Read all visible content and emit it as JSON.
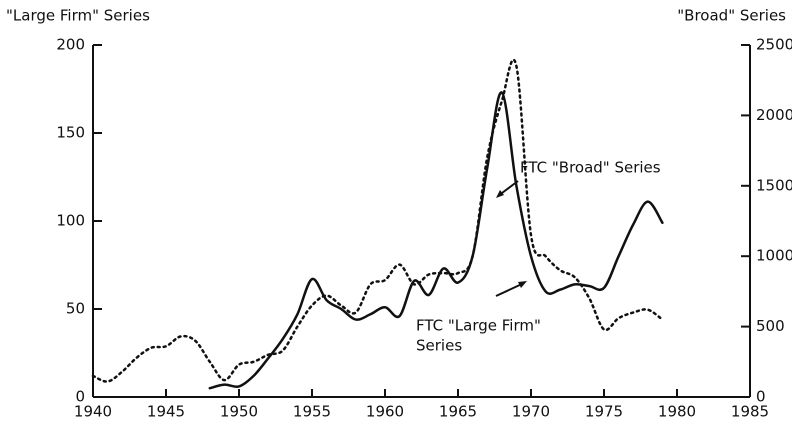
{
  "chart_data": {
    "type": "line",
    "y_label": "\"Large Firm\" Series",
    "y2_label": "\"Broad\" Series",
    "annotations": [
      {
        "lines": [
          "FTC \"Broad\" Series"
        ]
      },
      {
        "lines": [
          "FTC \"Large Firm\"",
          "Series"
        ]
      }
    ],
    "xlim": [
      1940,
      1985
    ],
    "xticks": [
      1940,
      1945,
      1950,
      1955,
      1960,
      1965,
      1970,
      1975,
      1980,
      1985
    ],
    "ylim": [
      0,
      200
    ],
    "yticks": [
      0,
      50,
      100,
      150,
      200
    ],
    "y2lim": [
      0,
      2500
    ],
    "y2ticks": [
      0,
      500,
      1000,
      1500,
      2000,
      2500
    ],
    "series": [
      {
        "color": "#111111",
        "style": "solid",
        "axis": "y",
        "x": [
          1948,
          1949,
          1950,
          1951,
          1952,
          1953,
          1954,
          1955,
          1956,
          1957,
          1958,
          1959,
          1960,
          1961,
          1962,
          1963,
          1964,
          1965,
          1966,
          1967,
          1968,
          1969,
          1970,
          1971,
          1972,
          1973,
          1974,
          1975,
          1976,
          1977,
          1978,
          1979
        ],
        "values": [
          5,
          7,
          6,
          12,
          22,
          33,
          47,
          67,
          55,
          50,
          44,
          47,
          51,
          46,
          66,
          58,
          73,
          65,
          80,
          130,
          173,
          120,
          80,
          60,
          61,
          64,
          63,
          62,
          80,
          98,
          111,
          99
        ]
      },
      {
        "color": "#111111",
        "style": "dotted",
        "axis": "y2",
        "x": [
          1940,
          1941,
          1942,
          1943,
          1944,
          1945,
          1946,
          1947,
          1948,
          1949,
          1950,
          1951,
          1952,
          1953,
          1954,
          1955,
          1956,
          1957,
          1958,
          1959,
          1960,
          1961,
          1962,
          1963,
          1964,
          1965,
          1966,
          1967,
          1968,
          1969,
          1970,
          1971,
          1972,
          1973,
          1974,
          1975,
          1976,
          1977,
          1978,
          1979
        ],
        "values": [
          150,
          110,
          180,
          280,
          350,
          360,
          430,
          400,
          250,
          120,
          230,
          250,
          300,
          330,
          500,
          650,
          720,
          650,
          600,
          800,
          830,
          940,
          800,
          870,
          880,
          880,
          1000,
          1700,
          2100,
          2350,
          1150,
          1000,
          900,
          850,
          700,
          480,
          560,
          600,
          620,
          550
        ]
      }
    ]
  }
}
